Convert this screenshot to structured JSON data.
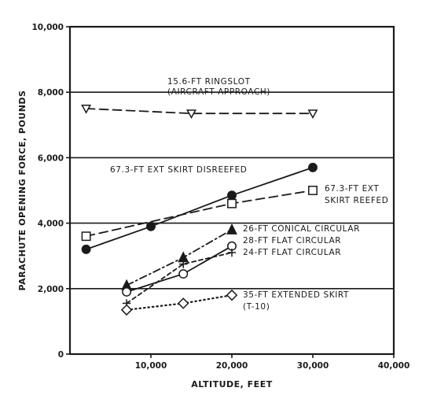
{
  "chart_data": {
    "type": "line",
    "title": "",
    "xlabel": "ALTITUDE, FEET",
    "ylabel": "PARACHUTE OPENING FORCE, POUNDS",
    "xlim": [
      0,
      40000
    ],
    "ylim": [
      0,
      10000
    ],
    "x_ticks": [
      "10,000",
      "20,000",
      "30,000",
      "40,000"
    ],
    "y_ticks": [
      "0",
      "2,000",
      "4,000",
      "6,000",
      "8,000",
      "10,000"
    ],
    "grid": "horizontal major lines",
    "series": [
      {
        "name": "15.6-FT RINGSLOT (AIRCRAFT APPROACH)",
        "label_lines": [
          "15.6-FT RINGSLOT",
          "(AIRCRAFT APPROACH)"
        ],
        "marker": "open-down-triangle",
        "line": "long-dash",
        "x": [
          2000,
          15000,
          30000
        ],
        "y": [
          7500,
          7350,
          7350
        ]
      },
      {
        "name": "67.3-FT EXT SKIRT DISREEFED",
        "label_lines": [
          "67.3-FT EXT SKIRT DISREEFED"
        ],
        "marker": "filled-circle",
        "line": "solid",
        "x": [
          2000,
          10000,
          20000,
          30000
        ],
        "y": [
          3200,
          3900,
          4850,
          5700
        ]
      },
      {
        "name": "67.3-FT EXT SKIRT REEFED",
        "label_lines": [
          "67.3-FT EXT",
          "SKIRT REEFED"
        ],
        "marker": "open-square",
        "line": "long-dash",
        "x": [
          2000,
          20000,
          30000
        ],
        "y": [
          3600,
          4600,
          5000
        ]
      },
      {
        "name": "26-FT CONICAL CIRCULAR",
        "label_lines": [
          "26-FT CONICAL CIRCULAR"
        ],
        "marker": "filled-triangle",
        "line": "dash-dot",
        "x": [
          7000,
          14000,
          20000
        ],
        "y": [
          2100,
          2950,
          3800
        ]
      },
      {
        "name": "28-FT FLAT CIRCULAR",
        "label_lines": [
          "28-FT FLAT CIRCULAR"
        ],
        "marker": "open-circle",
        "line": "solid",
        "x": [
          7000,
          14000,
          20000
        ],
        "y": [
          1900,
          2450,
          3300
        ]
      },
      {
        "name": "24-FT FLAT CIRCULAR",
        "label_lines": [
          "24-FT FLAT CIRCULAR"
        ],
        "marker": "plus",
        "line": "short-dash",
        "x": [
          7000,
          14000,
          20000
        ],
        "y": [
          1550,
          2750,
          3100
        ]
      },
      {
        "name": "35-FT EXTENDED SKIRT (T-10)",
        "label_lines": [
          "35-FT EXTENDED SKIRT",
          "(T-10)"
        ],
        "marker": "open-diamond",
        "line": "dotted",
        "x": [
          7000,
          14000,
          20000
        ],
        "y": [
          1350,
          1550,
          1800
        ]
      }
    ]
  }
}
